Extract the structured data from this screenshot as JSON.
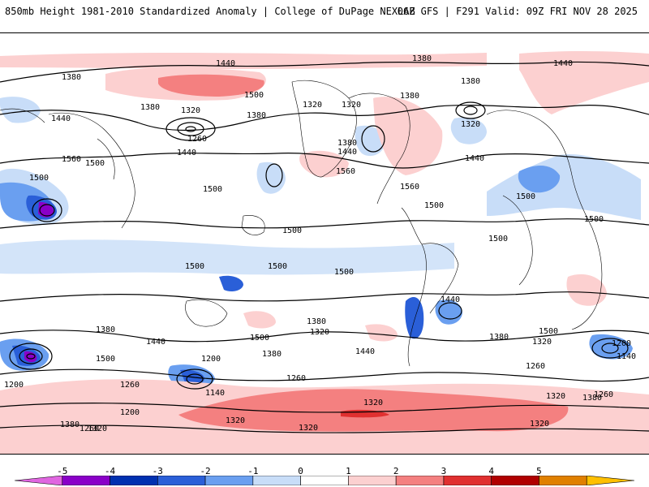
{
  "header": {
    "title_left": "850mb Height 1981-2010 Standardized Anomaly | College of DuPage NEXLAB",
    "title_right": "06Z GFS | F291 Valid: 09Z FRI NOV 28 2025"
  },
  "map": {
    "contour_labels": [
      "1380",
      "1440",
      "1380",
      "1440",
      "1380",
      "1500",
      "1320",
      "1380",
      "1320",
      "1320",
      "1380",
      "1320",
      "1380",
      "1440",
      "1260",
      "1440",
      "1500",
      "1380",
      "1440",
      "1560",
      "1500",
      "1500",
      "1560",
      "1440",
      "1560",
      "1500",
      "1500",
      "1500",
      "1500",
      "1500",
      "1500",
      "1500",
      "1500",
      "1440",
      "1500",
      "1500",
      "1380",
      "1440",
      "1380",
      "1320",
      "1440",
      "1500",
      "1320",
      "1260",
      "1380",
      "1200",
      "1380",
      "1200",
      "1140",
      "1260",
      "1260",
      "1320",
      "1200",
      "1140",
      "1260",
      "1320",
      "1380",
      "1260",
      "1380",
      "1320",
      "1320",
      "1200",
      "1320",
      "1320"
    ]
  },
  "colorbar": {
    "ticks": [
      "-5",
      "-4",
      "-3",
      "-2",
      "-1",
      "0",
      "1",
      "2",
      "3",
      "4",
      "5"
    ],
    "colors": [
      "#e066e0",
      "#8a00c8",
      "#0030b0",
      "#2a5fd8",
      "#6a9ff0",
      "#c8ddf8",
      "#ffffff",
      "#fcd0d0",
      "#f48080",
      "#e03030",
      "#b00000",
      "#e08000",
      "#ffc000"
    ]
  }
}
